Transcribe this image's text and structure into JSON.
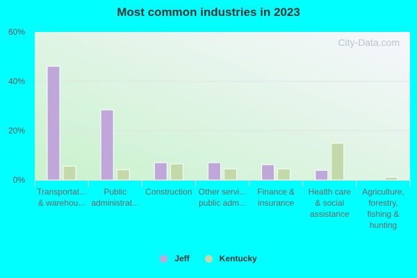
{
  "chart_data": {
    "type": "bar",
    "title": "Most common industries in 2023",
    "categories": [
      [
        "Transportat...",
        "& warehou..."
      ],
      [
        "Public",
        "administrat..."
      ],
      [
        "Construction"
      ],
      [
        "Other servi...",
        "public adm..."
      ],
      [
        "Finance &",
        "insurance"
      ],
      [
        "Health care",
        "& social",
        "assistance"
      ],
      [
        "Agriculture,",
        "forestry,",
        "fishing &",
        "hunting"
      ]
    ],
    "series": [
      {
        "name": "Jeff",
        "color": "#bfa8d9",
        "values": [
          46.1,
          28.4,
          7.0,
          7.0,
          6.2,
          3.9,
          0
        ]
      },
      {
        "name": "Kentucky",
        "color": "#c4d9a8",
        "values": [
          5.6,
          4.2,
          6.5,
          4.5,
          4.5,
          14.9,
          1.1
        ]
      }
    ],
    "ylim": [
      0,
      60
    ],
    "yticks": [
      0,
      20,
      40,
      60
    ],
    "ytick_labels": [
      "0%",
      "20%",
      "40%",
      "60%"
    ],
    "grid": true,
    "legend_position": "bottom",
    "watermark": "City-Data.com"
  }
}
